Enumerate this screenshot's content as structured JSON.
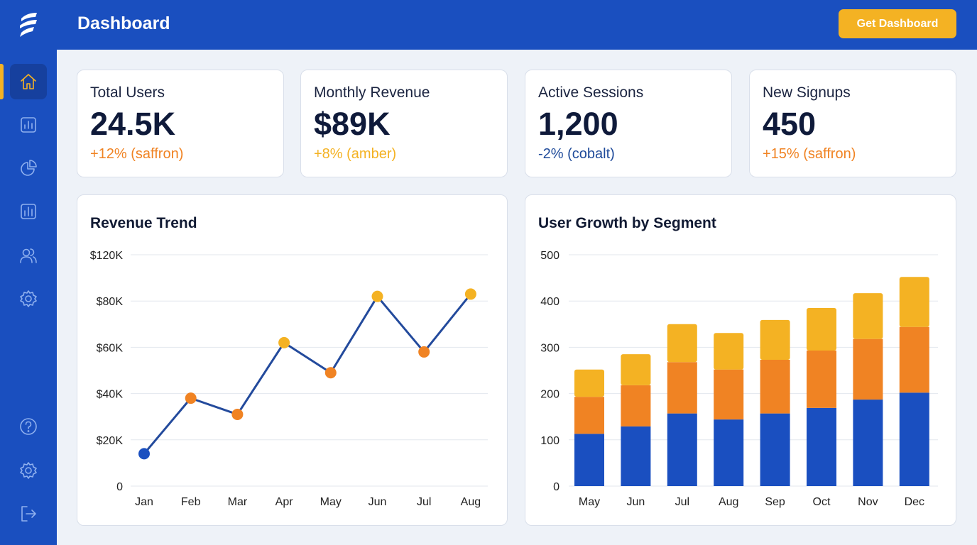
{
  "header": {
    "title": "Dashboard",
    "cta_label": "Get Dashboard"
  },
  "sidebar": {
    "items": [
      {
        "icon": "home-icon",
        "active": true
      },
      {
        "icon": "bar-chart-icon"
      },
      {
        "icon": "pie-chart-icon"
      },
      {
        "icon": "report-icon"
      },
      {
        "icon": "users-icon"
      },
      {
        "icon": "settings-icon"
      }
    ],
    "bottom": [
      {
        "icon": "help-icon"
      },
      {
        "icon": "settings-icon"
      },
      {
        "icon": "logout-icon"
      }
    ]
  },
  "colors": {
    "brand": "#1a4fbf",
    "saffron": "#f4b223",
    "amber": "#f08323",
    "cobalt": "#1a4fc0",
    "line": "#234a9c"
  },
  "kpis": [
    {
      "label": "Total Users",
      "value": "24.5K",
      "change": "+12% (saffron)",
      "color": "#f08323"
    },
    {
      "label": "Monthly Revenue",
      "value": "$89K",
      "change": "+8% (amber)",
      "color": "#f4b223"
    },
    {
      "label": "Active Sessions",
      "value": "1,200",
      "change": "-2% (cobalt)",
      "color": "#1e4a9a"
    },
    {
      "label": "New Signups",
      "value": "450",
      "change": "+15% (saffron)",
      "color": "#f08323"
    }
  ],
  "chart_data": [
    {
      "type": "line",
      "title": "Revenue Trend",
      "categories": [
        "Jan",
        "Feb",
        "Mar",
        "Apr",
        "May",
        "Jun",
        "Jul",
        "Aug"
      ],
      "values": [
        14,
        38,
        31,
        62,
        49,
        82,
        58,
        83
      ],
      "unit": "$K",
      "y_ticks": [
        "0",
        "$20K",
        "$40K",
        "$60K",
        "$80K",
        "$120K"
      ],
      "grid": true,
      "point_colors": [
        "#1a4fc0",
        "#f08323",
        "#f08323",
        "#f4b223",
        "#f08323",
        "#f4b223",
        "#f08323",
        "#f4b223"
      ]
    },
    {
      "type": "bar",
      "stacked": true,
      "title": "User Growth by Segment",
      "categories": [
        "May",
        "Jun",
        "Jul",
        "Aug",
        "Sep",
        "Oct",
        "Nov",
        "Dec"
      ],
      "series": [
        {
          "values": [
            113,
            129,
            157,
            144,
            157,
            169,
            187,
            202
          ],
          "color": "#1a4fc0"
        },
        {
          "values": [
            80,
            89,
            111,
            108,
            116,
            124,
            131,
            142
          ],
          "color": "#f08323"
        },
        {
          "values": [
            59,
            67,
            82,
            79,
            86,
            92,
            99,
            108
          ],
          "color": "#f4b223"
        }
      ],
      "y_ticks": [
        "0",
        "100",
        "200",
        "300",
        "400",
        "500"
      ],
      "ylim": [
        0,
        500
      ],
      "grid": true
    }
  ]
}
